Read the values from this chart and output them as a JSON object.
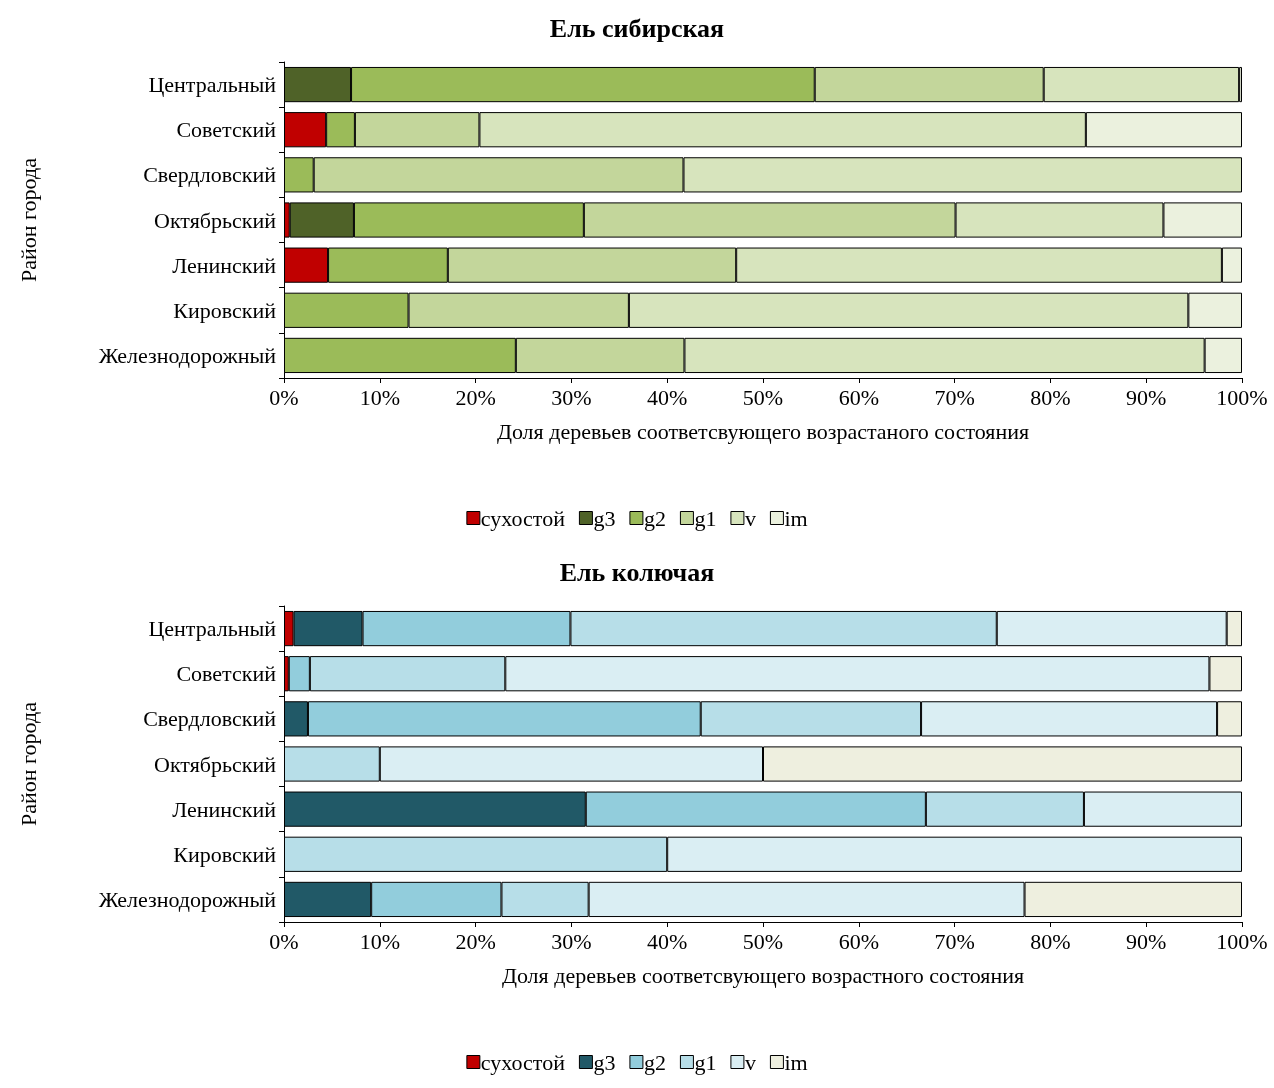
{
  "chart_data": [
    {
      "type": "bar",
      "title": "Ель сибирская",
      "xlabel": "Доля деревьев соответсвующего возрастаного состояния",
      "ylabel": "Район города",
      "orientation": "horizontal",
      "stacked": true,
      "legend": "bottom",
      "grid": false,
      "categories": [
        "Центральный",
        "Советский",
        "Свердловский",
        "Октябрьский",
        "Ленинский",
        "Кировский",
        "Железнодорожный"
      ],
      "xlim": [
        0,
        100
      ],
      "xticks": [
        {
          "value": 0,
          "label": "0%"
        },
        {
          "value": 10,
          "label": "10%"
        },
        {
          "value": 20,
          "label": "20%"
        },
        {
          "value": 30,
          "label": "30%"
        },
        {
          "value": 40,
          "label": "40%"
        },
        {
          "value": 50,
          "label": "50%"
        },
        {
          "value": 60,
          "label": "60%"
        },
        {
          "value": 70,
          "label": "70%"
        },
        {
          "value": 80,
          "label": "80%"
        },
        {
          "value": 90,
          "label": "90%"
        },
        {
          "value": 100,
          "label": "100%"
        }
      ],
      "series": [
        {
          "name": "сухостой",
          "color": "#c00000",
          "values": [
            null,
            4.4,
            null,
            0.6,
            4.6,
            null,
            null
          ]
        },
        {
          "name": "g3",
          "color": "#4f6228",
          "values": [
            7.0,
            null,
            null,
            6.7,
            null,
            null,
            null
          ]
        },
        {
          "name": "g2",
          "color": "#9bbb59",
          "values": [
            48.4,
            3.0,
            3.1,
            24.0,
            12.5,
            13.0,
            24.2
          ]
        },
        {
          "name": "g1",
          "color": "#c3d69b",
          "values": [
            23.9,
            13.0,
            38.6,
            38.8,
            30.1,
            23.0,
            17.6
          ]
        },
        {
          "name": "v",
          "color": "#d7e4bd",
          "values": [
            20.4,
            63.3,
            58.3,
            21.7,
            50.7,
            58.4,
            54.3
          ]
        },
        {
          "name": "im",
          "color": "#ebf1de",
          "values": [
            0.3,
            16.3,
            null,
            8.2,
            2.1,
            5.6,
            3.9
          ]
        }
      ]
    },
    {
      "type": "bar",
      "title": "Ель колючая",
      "xlabel": "Доля деревьев соответсвующего возрастного состояния",
      "ylabel": "Район города",
      "orientation": "horizontal",
      "stacked": true,
      "legend": "bottom",
      "grid": false,
      "categories": [
        "Центральный",
        "Советский",
        "Свердловский",
        "Октябрьский",
        "Ленинский",
        "Кировский",
        "Железнодорожный"
      ],
      "xlim": [
        0,
        100
      ],
      "xticks": [
        {
          "value": 0,
          "label": "0%"
        },
        {
          "value": 10,
          "label": "10%"
        },
        {
          "value": 20,
          "label": "20%"
        },
        {
          "value": 30,
          "label": "30%"
        },
        {
          "value": 40,
          "label": "40%"
        },
        {
          "value": 50,
          "label": "50%"
        },
        {
          "value": 60,
          "label": "60%"
        },
        {
          "value": 70,
          "label": "70%"
        },
        {
          "value": 80,
          "label": "80%"
        },
        {
          "value": 90,
          "label": "90%"
        },
        {
          "value": 100,
          "label": "100%"
        }
      ],
      "series": [
        {
          "name": "сухостой",
          "color": "#c00000",
          "values": [
            1.0,
            0.5,
            null,
            null,
            null,
            null,
            null
          ]
        },
        {
          "name": "g3",
          "color": "#215967",
          "values": [
            7.2,
            null,
            2.5,
            null,
            31.5,
            null,
            9.1
          ]
        },
        {
          "name": "g2",
          "color": "#92cddc",
          "values": [
            21.7,
            2.2,
            41.0,
            null,
            35.5,
            null,
            13.6
          ]
        },
        {
          "name": "g1",
          "color": "#b7dee8",
          "values": [
            44.5,
            20.4,
            23.0,
            10,
            16.5,
            40,
            9.1
          ]
        },
        {
          "name": "v",
          "color": "#daeef3",
          "values": [
            24.0,
            73.5,
            30.9,
            40,
            16.5,
            60,
            45.5
          ]
        },
        {
          "name": "im",
          "color": "#eeefdf",
          "values": [
            1.6,
            3.4,
            2.6,
            50,
            null,
            null,
            22.7
          ]
        }
      ]
    }
  ]
}
